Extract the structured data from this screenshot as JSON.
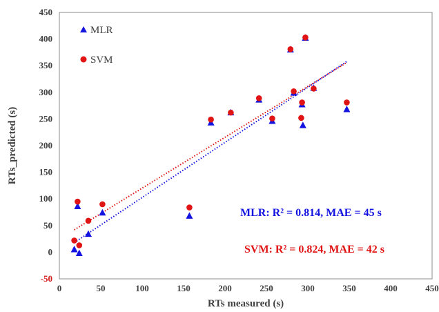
{
  "chart_data": {
    "type": "scatter",
    "xlabel": "RTs  measured (s)",
    "ylabel": "RTs_predicted (s)",
    "xlim": [
      0,
      450
    ],
    "ylim": [
      -50,
      450
    ],
    "x_ticks": [
      "0",
      "50",
      "100",
      "150",
      "200",
      "250",
      "300",
      "350",
      "400",
      "450"
    ],
    "y_ticks": [
      "-50",
      "0",
      "50",
      "100",
      "150",
      "200",
      "250",
      "300",
      "350",
      "400",
      "450"
    ],
    "grid": false,
    "legend_position": "top-left",
    "series": [
      {
        "name": "MLR",
        "marker": "triangle",
        "color": "#1414e0",
        "points": [
          [
            18,
            5
          ],
          [
            22,
            86
          ],
          [
            24,
            -2
          ],
          [
            35,
            34
          ],
          [
            52,
            74
          ],
          [
            157,
            68
          ],
          [
            183,
            243
          ],
          [
            207,
            262
          ],
          [
            241,
            286
          ],
          [
            257,
            246
          ],
          [
            279,
            380
          ],
          [
            283,
            299
          ],
          [
            293,
            277
          ],
          [
            294,
            238
          ],
          [
            297,
            402
          ],
          [
            307,
            308
          ],
          [
            347,
            268
          ]
        ],
        "trendline": {
          "x": [
            18,
            347
          ],
          "y": [
            18,
            358
          ]
        }
      },
      {
        "name": "SVM",
        "marker": "circle",
        "color": "#e01414",
        "points": [
          [
            18,
            22
          ],
          [
            22,
            95
          ],
          [
            24,
            13
          ],
          [
            35,
            59
          ],
          [
            52,
            90
          ],
          [
            157,
            84
          ],
          [
            183,
            249
          ],
          [
            207,
            262
          ],
          [
            241,
            289
          ],
          [
            257,
            251
          ],
          [
            279,
            381
          ],
          [
            283,
            302
          ],
          [
            293,
            281
          ],
          [
            292,
            252
          ],
          [
            297,
            403
          ],
          [
            307,
            307
          ],
          [
            347,
            281
          ]
        ],
        "trendline": {
          "x": [
            18,
            347
          ],
          "y": [
            42,
            356
          ]
        }
      }
    ],
    "annotations": [
      {
        "text": "MLR: R² = 0.814, MAE = 45 s",
        "color": "#1414e0"
      },
      {
        "text": "SVM: R² = 0.824, MAE = 42 s",
        "color": "#e01414"
      }
    ]
  }
}
